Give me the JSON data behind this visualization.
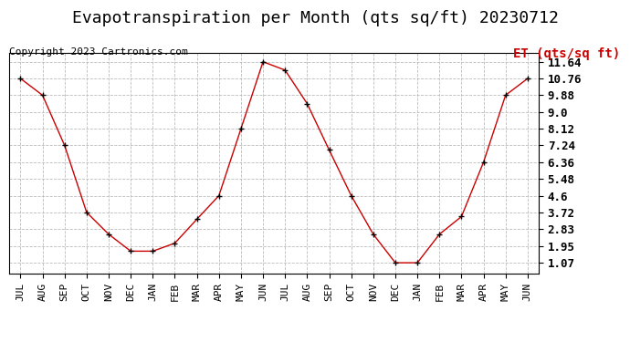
{
  "title": "Evapotranspiration per Month (qts sq/ft) 20230712",
  "copyright": "Copyright 2023 Cartronics.com",
  "legend_label": "ET (qts/sq ft)",
  "x_labels": [
    "JUL",
    "AUG",
    "SEP",
    "OCT",
    "NOV",
    "DEC",
    "JAN",
    "FEB",
    "MAR",
    "APR",
    "MAY",
    "JUN",
    "JUL",
    "AUG",
    "SEP",
    "OCT",
    "NOV",
    "DEC",
    "JAN",
    "FEB",
    "MAR",
    "APR",
    "MAY",
    "JUN"
  ],
  "y_values": [
    10.76,
    9.88,
    7.24,
    3.72,
    2.57,
    1.68,
    1.68,
    2.1,
    3.36,
    4.6,
    8.12,
    11.64,
    11.2,
    9.44,
    7.0,
    4.6,
    2.57,
    1.07,
    1.07,
    2.57,
    3.5,
    6.36,
    9.88,
    10.76
  ],
  "y_ticks": [
    1.07,
    1.95,
    2.83,
    3.72,
    4.6,
    5.48,
    6.36,
    7.24,
    8.12,
    9.0,
    9.88,
    10.76,
    11.64
  ],
  "ylim": [
    0.5,
    12.1
  ],
  "line_color": "#cc0000",
  "marker_color": "#000000",
  "background_color": "#ffffff",
  "grid_color": "#bbbbbb",
  "title_fontsize": 13,
  "copyright_fontsize": 8,
  "legend_fontsize": 10,
  "tick_fontsize": 9,
  "xlabel_fontsize": 8
}
